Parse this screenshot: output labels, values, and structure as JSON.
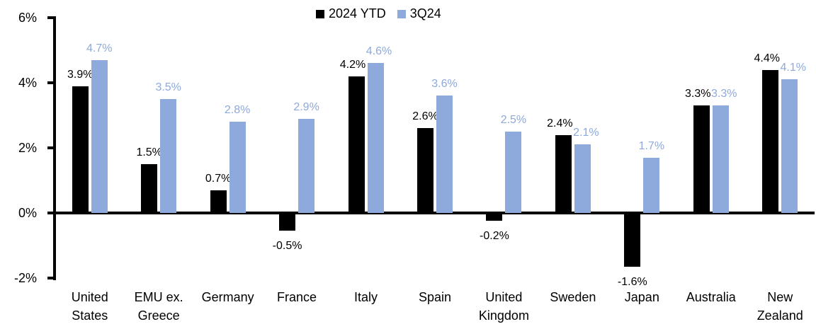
{
  "chart_data": {
    "type": "bar",
    "title": "",
    "legend": {
      "position": "top-center",
      "entries": [
        "2024 YTD",
        "3Q24"
      ]
    },
    "categories": [
      "United States",
      "EMU ex. Greece",
      "Germany",
      "France",
      "Italy",
      "Spain",
      "United Kingdom",
      "Sweden",
      "Japan",
      "Australia",
      "New Zealand"
    ],
    "series": [
      {
        "name": "2024 YTD",
        "color": "#000000",
        "values": [
          3.9,
          1.5,
          0.7,
          -0.5,
          4.2,
          2.6,
          -0.2,
          2.4,
          -1.6,
          3.3,
          4.4
        ],
        "labels": [
          "3.9%",
          "1.5%",
          "0.7%",
          "-0.5%",
          "4.2%",
          "2.6%",
          "-0.2%",
          "2.4%",
          "-1.6%",
          "3.3%",
          "4.4%"
        ]
      },
      {
        "name": "3Q24",
        "color": "#8EA9DB",
        "values": [
          4.7,
          3.5,
          2.8,
          2.9,
          4.6,
          3.6,
          2.5,
          2.1,
          1.7,
          3.3,
          4.1
        ],
        "labels": [
          "4.7%",
          "3.5%",
          "2.8%",
          "2.9%",
          "4.6%",
          "3.6%",
          "2.5%",
          "2.1%",
          "1.7%",
          "3.3%",
          "4.1%"
        ]
      }
    ],
    "y_axis": {
      "min": -2,
      "max": 6,
      "tick_labels": [
        "6%",
        "4%",
        "2%",
        "0%",
        "-2%"
      ],
      "tick_values": [
        6,
        4,
        2,
        0,
        -2
      ],
      "grid": false
    },
    "colors": {
      "background": "#FFFFFF",
      "axis": "#000000"
    }
  }
}
